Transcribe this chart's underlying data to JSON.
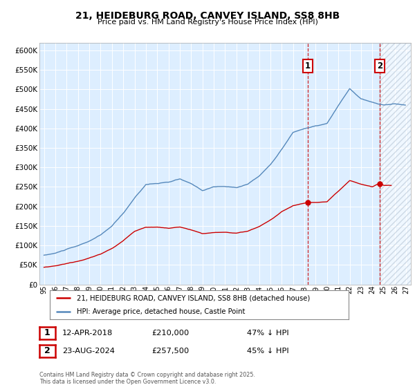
{
  "title_line1": "21, HEIDEBURG ROAD, CANVEY ISLAND, SS8 8HB",
  "title_line2": "Price paid vs. HM Land Registry's House Price Index (HPI)",
  "legend_red": "21, HEIDEBURG ROAD, CANVEY ISLAND, SS8 8HB (detached house)",
  "legend_blue": "HPI: Average price, detached house, Castle Point",
  "annotation1_label": "1",
  "annotation1_date": "12-APR-2018",
  "annotation1_price": 210000,
  "annotation1_hpi": "47% ↓ HPI",
  "annotation2_label": "2",
  "annotation2_date": "23-AUG-2024",
  "annotation2_price": 257500,
  "annotation2_hpi": "45% ↓ HPI",
  "footer": "Contains HM Land Registry data © Crown copyright and database right 2025.\nThis data is licensed under the Open Government Licence v3.0.",
  "red_color": "#cc0000",
  "blue_color": "#5588bb",
  "dashed_color": "#cc0000",
  "bg_chart": "#ddeeff",
  "bg_shaded": "#ddeeff",
  "ylim_min": 0,
  "ylim_max": 620000,
  "sale1_year": 2018.29,
  "sale2_year": 2024.65,
  "sale1_red_price": 210000,
  "sale2_red_price": 257500
}
